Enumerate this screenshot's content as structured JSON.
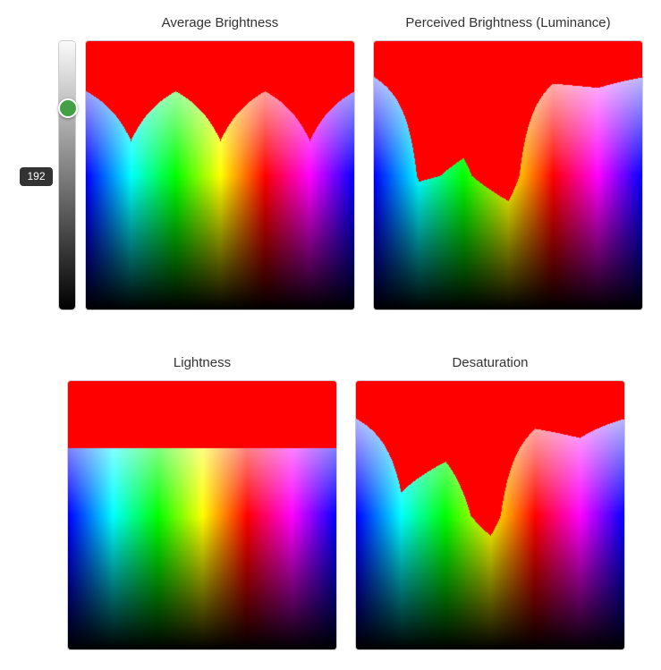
{
  "threshold": {
    "value": "192",
    "max": 255
  },
  "panels": [
    {
      "title": "Average Brightness",
      "metric": "average"
    },
    {
      "title": "Perceived Brightness (Luminance)",
      "metric": "luminance"
    },
    {
      "title": "Lightness",
      "metric": "lightness"
    },
    {
      "title": "Desaturation",
      "metric": "desaturation"
    }
  ],
  "highlight_color": "#ff0000"
}
